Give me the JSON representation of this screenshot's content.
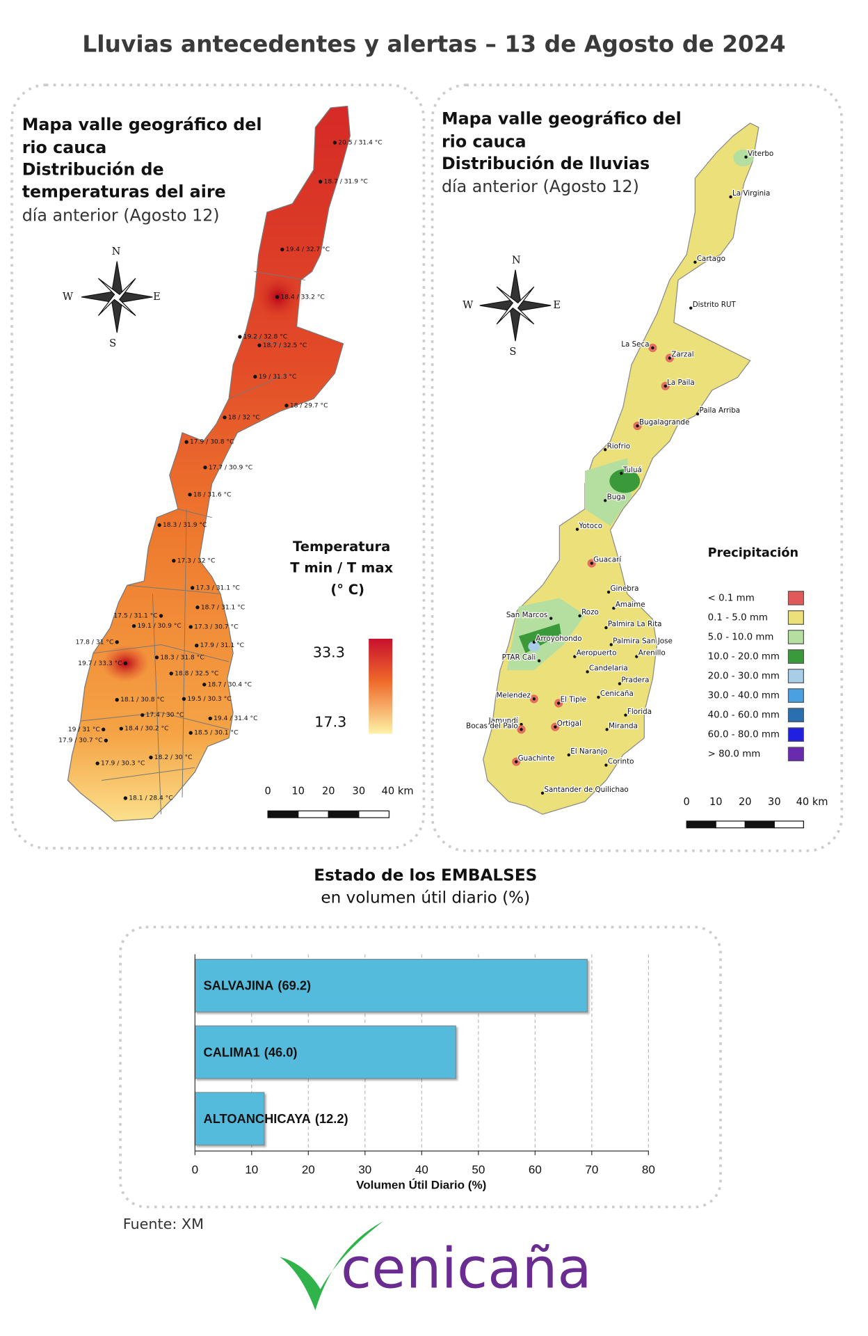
{
  "header": {
    "title": "Lluvias antecedentes y alertas – 13 de Agosto de 2024"
  },
  "temperature_map": {
    "title_lines": [
      "Mapa valle geográfico del",
      "rio cauca",
      "Distribución de",
      "temperaturas del aire"
    ],
    "subtitle": "día anterior (Agosto 12)",
    "compass": [
      "N",
      "W",
      "E",
      "S"
    ],
    "legend": {
      "title_lines": [
        "Temperatura",
        "T min / T max",
        "(° C)"
      ],
      "max": 33.3,
      "min": 17.3
    },
    "scale_ticks": [
      0,
      10,
      20,
      30,
      {
        "value": 40,
        "label": "40 km"
      }
    ],
    "stations": [
      "20.5 / 31.4 °C",
      "18.7 / 31.9 °C",
      "19.4 / 32.7 °C",
      "18.4 / 33.2 °C",
      "19.2 / 32.8 °C",
      "18.7 / 32.5 °C",
      "19 / 31.3 °C",
      "18 / 29.7 °C",
      "18 / 32 °C",
      "17.9 / 30.8 °C",
      "17.7 / 30.9 °C",
      "18 / 31.6 °C",
      "18.3 / 31.9 °C",
      "17.3 / 32 °C",
      "17.3 / 31.1 °C",
      "18.7 / 31.1 °C",
      "17.5 / 31.1 °C",
      "19.1 / 30.9 °C",
      "17.3 / 30.7 °C",
      "17.8 / 31 °C",
      "17.9 / 31.1 °C",
      "19.7 / 33.3 °C",
      "18.3 / 31.8 °C",
      "18.8 / 32.5 °C",
      "18.7 / 30.4 °C",
      "18.1 / 30.8 °C",
      "19.5 / 30.3 °C",
      "17.4 / 30 °C",
      "19.4 / 31.4 °C",
      "19 / 31 °C",
      "17.9 / 30.7 °C",
      "18.4 / 30.2 °C",
      "18.5 / 30.1 °C",
      "17.9 / 30.3 °C",
      "18.2 / 30 °C",
      "18.1 / 28.4 °C"
    ]
  },
  "rain_map": {
    "title_lines": [
      "Mapa valle geográfico del",
      "rio cauca",
      "Distribución de lluvias"
    ],
    "subtitle": "día anterior (Agosto 12)",
    "compass": [
      "N",
      "W",
      "E",
      "S"
    ],
    "legend": {
      "title": "Precipitación",
      "classes": [
        {
          "label": "< 0.1 mm",
          "color": "#e05a5a"
        },
        {
          "label": "0.1 - 5.0 mm",
          "color": "#ece07a"
        },
        {
          "label": "5.0 - 10.0 mm",
          "color": "#b5dfa0"
        },
        {
          "label": "10.0 - 20.0 mm",
          "color": "#3a9a3a"
        },
        {
          "label": "20.0 - 30.0 mm",
          "color": "#a8cde6"
        },
        {
          "label": "30.0 - 40.0 mm",
          "color": "#4aa0e0"
        },
        {
          "label": "40.0 - 60.0 mm",
          "color": "#2a6fb0"
        },
        {
          "label": "60.0 - 80.0 mm",
          "color": "#2020e0"
        },
        {
          "label": "> 80.0 mm",
          "color": "#6a2ab0"
        }
      ]
    },
    "scale_ticks": [
      0,
      10,
      20,
      30,
      {
        "value": 40,
        "label": "40 km"
      }
    ],
    "stations": [
      "Viterbo",
      "La Virginia",
      "Cartago",
      "Distrito RUT",
      "La Seca",
      "Zarzal",
      "La Paila",
      "Paila Arriba",
      "Bugalagrande",
      "Riofrio",
      "Tuluá",
      "Buga",
      "Yotoco",
      "Guacarí",
      "Ginebra",
      "Amaime",
      "San Marcos",
      "Rozo",
      "Palmira La Rita",
      "Arroyohondo",
      "Palmira San Jose",
      "Aeropuerto",
      "Arenillo",
      "PTAR Cali",
      "Candelaria",
      "Pradera",
      "Melendez",
      "Cenicaña",
      "El Tiple",
      "Florida",
      "Jamundí",
      "Ortigal",
      "Bocas del Palo",
      "Miranda",
      "El Naranjo",
      "Guachinte",
      "Corinto",
      "Santander de Quilichao"
    ]
  },
  "chart_data": {
    "type": "hbar",
    "title": "Estado de los EMBALSES",
    "subtitle": "en volumen útil diario (%)",
    "categories": [
      "SALVAJINA",
      "CALIMA1",
      "ALTOANCHICAYA"
    ],
    "values": [
      69.2,
      46.0,
      12.2
    ],
    "value_labels": [
      "(69.2)",
      "(46.0)",
      "(12.2)"
    ],
    "color": "#55bbdc",
    "xlim": [
      0,
      80
    ],
    "xticks": [
      0,
      10,
      20,
      30,
      40,
      50,
      60,
      70,
      80
    ],
    "xlabel": "Volumen Útil Diario (%)",
    "grid": true
  },
  "footer": {
    "source": "Fuente: XM",
    "logo": "cenicaña"
  }
}
